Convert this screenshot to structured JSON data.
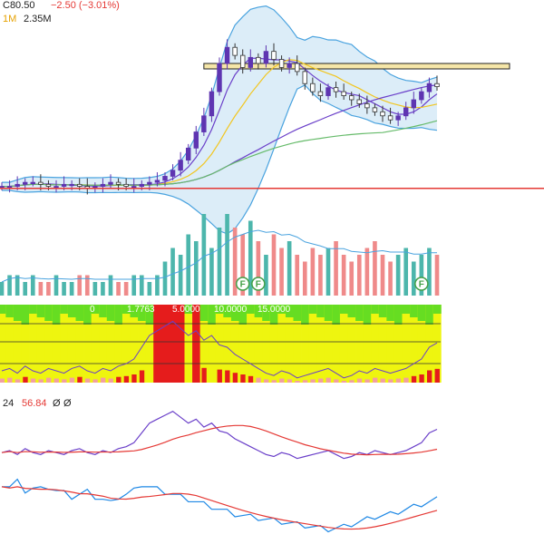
{
  "header": {
    "close": "C80.50",
    "change": "−2.50 (−3.01%)",
    "volume_key": "1M",
    "volume_value": "2.35M"
  },
  "indicator_header": {
    "left": "1.7763",
    "v1": "5.0000",
    "v2": "10.0000",
    "v3": "15.0000",
    "marker": "0"
  },
  "rsi_header": {
    "period": "24",
    "value": "56.84",
    "a": "Ø",
    "b": "Ø"
  },
  "markers": [
    "F",
    "F",
    "F"
  ],
  "colors": {
    "up": "#5e35b1",
    "down": "#ffffff",
    "up_alt": "#1e88e5",
    "band_fill": "#cde6f5",
    "band_line": "#4aa3df",
    "ma_purple": "#6a3fc9",
    "ma_yellow": "#f2c61f",
    "ma_green": "#66bb6a",
    "support": "#e53935",
    "zone": "#f5e6a8",
    "vol_up": "#4db6ac",
    "vol_down": "#ef8a8a",
    "hm_green": "#66dd22",
    "hm_yellow": "#eef50f",
    "hm_red": "#e51c1c"
  },
  "chart_data": {
    "type": "line",
    "price": [
      31,
      31,
      32,
      33,
      33,
      32,
      31,
      31,
      32,
      32,
      31,
      30,
      31,
      32,
      33,
      32,
      31,
      31,
      32,
      33,
      34,
      36,
      39,
      44,
      50,
      58,
      66,
      78,
      92,
      100,
      96,
      90,
      95,
      92,
      98,
      94,
      90,
      92,
      88,
      82,
      78,
      76,
      80,
      78,
      76,
      74,
      72,
      70,
      68,
      66,
      64,
      66,
      70,
      74,
      78,
      82,
      80.5
    ],
    "volume": [
      2,
      3,
      3,
      2,
      3,
      2,
      2,
      3,
      2,
      2,
      3,
      3,
      2,
      2,
      3,
      2,
      2,
      3,
      3,
      2,
      3,
      5,
      7,
      6,
      9,
      8,
      12,
      7,
      10,
      12,
      10,
      9,
      11,
      8,
      6,
      9,
      7,
      8,
      6,
      5,
      7,
      6,
      7,
      8,
      6,
      5,
      6,
      7,
      8,
      6,
      5,
      6,
      7,
      5,
      6,
      7,
      6
    ],
    "rsi": [
      45,
      46,
      44,
      47,
      45,
      44,
      46,
      45,
      44,
      46,
      47,
      45,
      44,
      46,
      45,
      47,
      48,
      50,
      55,
      60,
      62,
      64,
      66,
      63,
      60,
      62,
      58,
      60,
      56,
      55,
      52,
      50,
      48,
      46,
      44,
      43,
      45,
      44,
      42,
      43,
      44,
      45,
      46,
      44,
      42,
      43,
      45,
      44,
      46,
      45,
      44,
      45,
      46,
      48,
      50,
      55,
      56.84
    ],
    "osc": [
      60,
      58,
      62,
      55,
      57,
      56,
      58,
      55,
      53,
      50,
      52,
      54,
      50,
      48,
      45,
      50,
      52,
      55,
      60,
      58,
      56,
      54,
      52,
      50,
      48,
      46,
      44,
      42,
      40,
      38,
      36,
      35,
      34,
      33,
      32,
      31,
      30,
      29,
      28,
      27,
      26,
      25,
      24,
      25,
      26,
      28,
      30,
      32,
      34,
      35,
      36,
      38,
      40,
      42,
      44,
      46,
      48
    ]
  }
}
